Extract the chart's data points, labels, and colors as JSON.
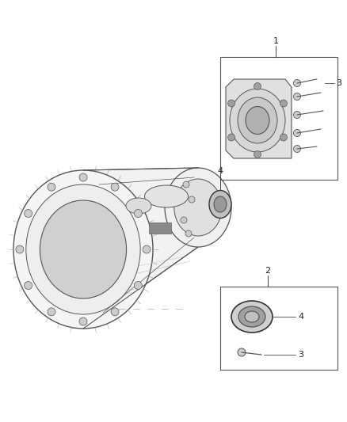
{
  "bg_color": "#ffffff",
  "fig_width": 4.38,
  "fig_height": 5.33,
  "dpi": 100,
  "line_color": "#444444",
  "text_color": "#222222",
  "part_line_color": "#555555",
  "gray_light": "#e8e8e8",
  "gray_mid": "#cccccc",
  "gray_dark": "#999999",
  "gray_darker": "#777777"
}
